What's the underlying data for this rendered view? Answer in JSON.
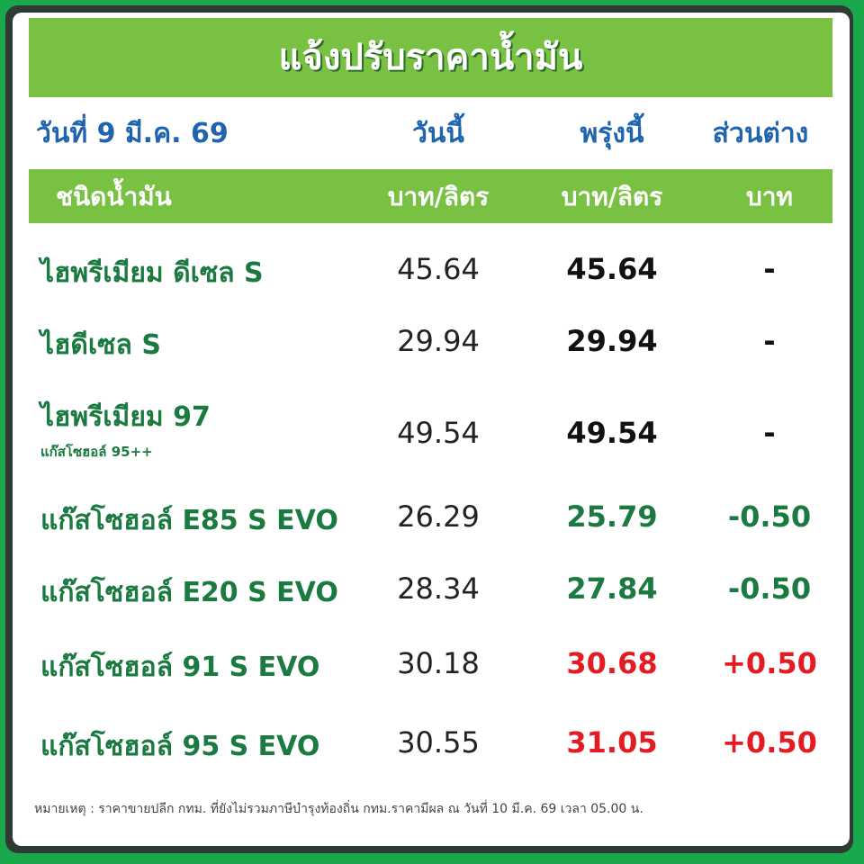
{
  "title": "แจ้งปรับราคาน้ำมัน",
  "header": {
    "date": "วันที่ 9 มี.ค. 69",
    "today": "วันนี้",
    "tomorrow": "พรุ่งนี้",
    "diff": "ส่วนต่าง"
  },
  "subheader": {
    "type": "ชนิดน้ำมัน",
    "today_unit": "บาท/ลิตร",
    "tomorrow_unit": "บาท/ลิตร",
    "diff_unit": "บาท"
  },
  "colors": {
    "green_band": "#78c142",
    "blue_header": "#1f64ad",
    "name_green": "#1a7a40",
    "decrease": "#1a7a40",
    "increase": "#e31b23",
    "unchanged": "#111111"
  },
  "rows": [
    {
      "name": "ไฮพรีเมียม ดีเซล S",
      "note": "",
      "today": "45.64",
      "tomorrow": "45.64",
      "diff": "-",
      "trend": "unchanged"
    },
    {
      "name": "ไฮดีเซล S",
      "note": "",
      "today": "29.94",
      "tomorrow": "29.94",
      "diff": "-",
      "trend": "unchanged"
    },
    {
      "name": "ไฮพรีเมียม 97",
      "note": "แก๊สโซฮอล์ 95++",
      "today": "49.54",
      "tomorrow": "49.54",
      "diff": "-",
      "trend": "unchanged"
    },
    {
      "name": "แก๊สโซฮอล์ E85 S EVO",
      "note": "",
      "today": "26.29",
      "tomorrow": "25.79",
      "diff": "-0.50",
      "trend": "decrease"
    },
    {
      "name": "แก๊สโซฮอล์ E20 S EVO",
      "note": "",
      "today": "28.34",
      "tomorrow": "27.84",
      "diff": "-0.50",
      "trend": "decrease"
    },
    {
      "name": "แก๊สโซฮอล์ 91 S EVO",
      "note": "",
      "today": "30.18",
      "tomorrow": "30.68",
      "diff": "+0.50",
      "trend": "increase"
    },
    {
      "name": "แก๊สโซฮอล์ 95 S EVO",
      "note": "",
      "today": "30.55",
      "tomorrow": "31.05",
      "diff": "+0.50",
      "trend": "increase"
    }
  ],
  "footer": "หมายเหตุ :  ราคาขายปลีก กทม. ที่ยังไม่รวมภาษีบำรุงท้องถิ่น  กทม.ราคามีผล ณ วันที่ 10 มี.ค. 69 เวลา 05.00 น."
}
